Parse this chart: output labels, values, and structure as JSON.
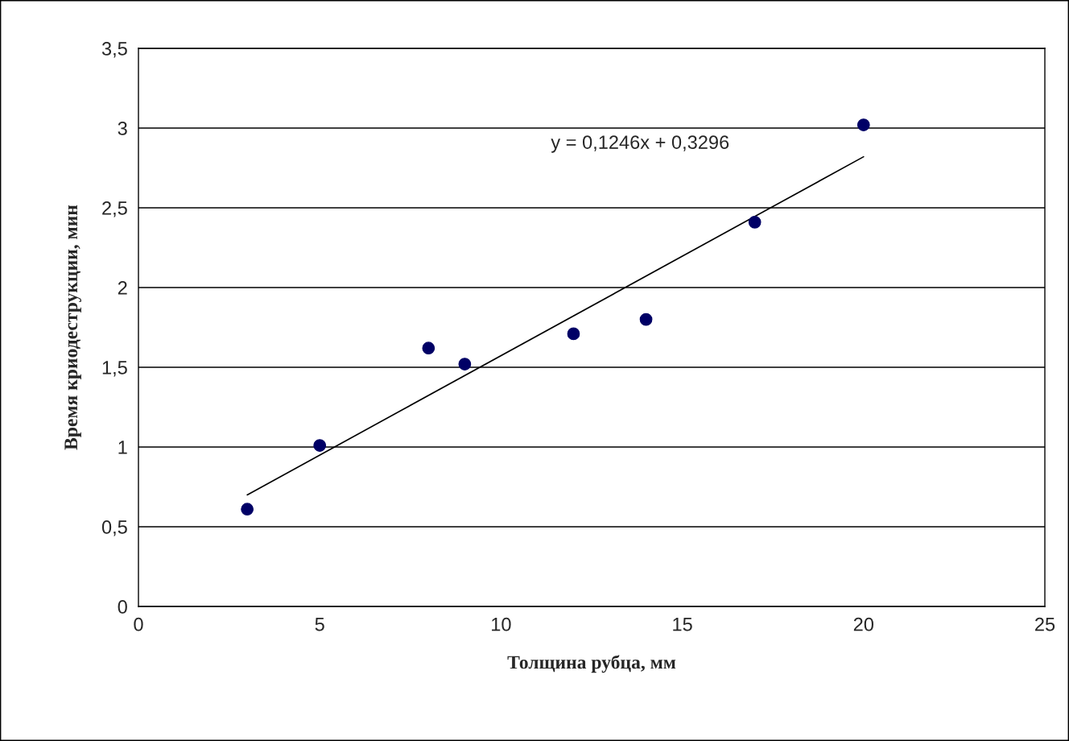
{
  "chart_data": {
    "type": "scatter",
    "xlabel": "Толщина рубца, мм",
    "ylabel": "Время криодеструкции, мин",
    "series": [
      {
        "color": "#000066",
        "marker": "circle",
        "x": [
          3,
          5,
          8,
          9,
          12,
          14,
          17,
          20
        ],
        "values": [
          0.61,
          1.01,
          1.62,
          1.52,
          1.71,
          1.8,
          2.41,
          3.02
        ]
      },
      {
        "type": "line",
        "color": "#000000",
        "marker": "none",
        "line_style": "solid",
        "x": [
          3,
          20
        ],
        "values": [
          0.7,
          2.82
        ]
      }
    ],
    "annotations": [
      "y = 0,1246x + 0,3296"
    ],
    "xlim": [
      0,
      25
    ],
    "xticks": [
      0,
      5,
      10,
      15,
      20,
      25
    ],
    "ylim": [
      0,
      3.5
    ],
    "yticks": [
      0,
      {
        "value": 0.5,
        "label": "0,5"
      },
      1,
      {
        "value": 1.5,
        "label": "1,5"
      },
      2,
      {
        "value": 2.5,
        "label": "2,5"
      },
      3,
      {
        "value": 3.5,
        "label": "3,5"
      }
    ],
    "grid": "y",
    "legend": false
  }
}
